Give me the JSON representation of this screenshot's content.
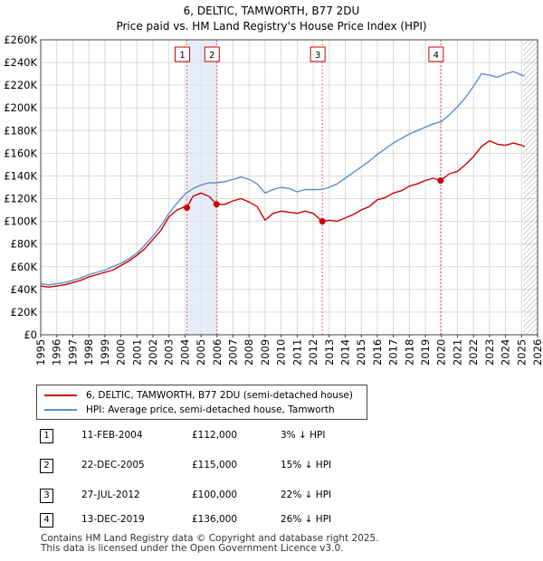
{
  "title_line1": "6, DELTIC, TAMWORTH, B77 2DU",
  "title_line2": "Price paid vs. HM Land Registry's House Price Index (HPI)",
  "colors": {
    "property": "#cc0000",
    "hpi": "#5b8fc9",
    "marker_line": "#e06666",
    "hatch": "#999999"
  },
  "chart_data": {
    "type": "line",
    "title": "Price paid vs. HM Land Registry's House Price Index (HPI)",
    "xlabel": "",
    "ylabel": "",
    "xlim": [
      1995,
      2026
    ],
    "ylim": [
      0,
      260000
    ],
    "y_ticks": [
      0,
      20000,
      40000,
      60000,
      80000,
      100000,
      120000,
      140000,
      160000,
      180000,
      200000,
      220000,
      240000,
      260000
    ],
    "y_tick_labels": [
      "£0",
      "£20K",
      "£40K",
      "£60K",
      "£80K",
      "£100K",
      "£120K",
      "£140K",
      "£160K",
      "£180K",
      "£200K",
      "£220K",
      "£240K",
      "£260K"
    ],
    "x_ticks": [
      1995,
      1996,
      1997,
      1998,
      1999,
      2000,
      2001,
      2002,
      2003,
      2004,
      2005,
      2006,
      2007,
      2008,
      2009,
      2010,
      2011,
      2012,
      2013,
      2014,
      2015,
      2016,
      2017,
      2018,
      2019,
      2020,
      2021,
      2022,
      2023,
      2024,
      2025,
      2026
    ],
    "x_tick_labels": [
      "1995",
      "1996",
      "1997",
      "1998",
      "1999",
      "2000",
      "2001",
      "2002",
      "2003",
      "2004",
      "2005",
      "2006",
      "2007",
      "2008",
      "2009",
      "2010",
      "2011",
      "2012",
      "2013",
      "2014",
      "2015",
      "2016",
      "2017",
      "2018",
      "2019",
      "2020",
      "2021",
      "2022",
      "2023",
      "2024",
      "2025",
      "2026"
    ],
    "grid": true,
    "forecast_start": 2025.1,
    "series": [
      {
        "name": "6, DELTIC, TAMWORTH, B77 2DU (semi-detached house)",
        "color": "#cc0000",
        "x": [
          1995.0,
          1995.5,
          1996.0,
          1996.5,
          1997.0,
          1997.5,
          1998.0,
          1998.5,
          1999.0,
          1999.5,
          2000.0,
          2000.5,
          2001.0,
          2001.5,
          2002.0,
          2002.5,
          2003.0,
          2003.5,
          2004.0,
          2004.12,
          2004.5,
          2005.0,
          2005.5,
          2005.97,
          2006.5,
          2007.0,
          2007.5,
          2008.0,
          2008.5,
          2009.0,
          2009.5,
          2010.0,
          2010.5,
          2011.0,
          2011.5,
          2012.0,
          2012.57,
          2013.0,
          2013.5,
          2014.0,
          2014.5,
          2015.0,
          2015.5,
          2016.0,
          2016.5,
          2017.0,
          2017.5,
          2018.0,
          2018.5,
          2019.0,
          2019.5,
          2019.95,
          2020.5,
          2021.0,
          2021.5,
          2022.0,
          2022.5,
          2023.0,
          2023.5,
          2024.0,
          2024.5,
          2025.0,
          2025.2
        ],
        "values": [
          43000,
          42000,
          43000,
          44000,
          46000,
          48000,
          51000,
          53000,
          55000,
          57000,
          61000,
          65000,
          70000,
          76000,
          84000,
          92000,
          104000,
          110000,
          113000,
          112000,
          122000,
          125000,
          122000,
          115000,
          115000,
          118000,
          120000,
          117000,
          113000,
          101000,
          107000,
          109000,
          108000,
          107000,
          109000,
          107000,
          100000,
          101000,
          100000,
          103000,
          106000,
          110000,
          113000,
          119000,
          121000,
          125000,
          127000,
          131000,
          133000,
          136000,
          138000,
          136000,
          142000,
          144000,
          150000,
          157000,
          166000,
          171000,
          168000,
          167000,
          169000,
          167000,
          166000
        ]
      },
      {
        "name": "HPI: Average price, semi-detached house, Tamworth",
        "color": "#5b8fc9",
        "x": [
          1995.0,
          1995.5,
          1996.0,
          1996.5,
          1997.0,
          1997.5,
          1998.0,
          1998.5,
          1999.0,
          1999.5,
          2000.0,
          2000.5,
          2001.0,
          2001.5,
          2002.0,
          2002.5,
          2003.0,
          2003.5,
          2004.0,
          2004.5,
          2005.0,
          2005.5,
          2006.0,
          2006.5,
          2007.0,
          2007.5,
          2008.0,
          2008.5,
          2009.0,
          2009.5,
          2010.0,
          2010.5,
          2011.0,
          2011.5,
          2012.0,
          2012.5,
          2013.0,
          2013.5,
          2014.0,
          2014.5,
          2015.0,
          2015.5,
          2016.0,
          2016.5,
          2017.0,
          2017.5,
          2018.0,
          2018.5,
          2019.0,
          2019.5,
          2020.0,
          2020.5,
          2021.0,
          2021.5,
          2022.0,
          2022.5,
          2023.0,
          2023.5,
          2024.0,
          2024.5,
          2025.0,
          2025.2
        ],
        "values": [
          45000,
          44000,
          45000,
          46000,
          48000,
          50000,
          53000,
          55000,
          57000,
          60000,
          63000,
          67000,
          72000,
          79000,
          87000,
          96000,
          107000,
          116000,
          124000,
          129000,
          132000,
          134000,
          134000,
          135000,
          137000,
          139000,
          137000,
          133000,
          125000,
          128000,
          130000,
          129000,
          126000,
          128000,
          128000,
          128000,
          130000,
          133000,
          138000,
          143000,
          148000,
          153000,
          159000,
          164000,
          169000,
          173000,
          177000,
          180000,
          183000,
          186000,
          188000,
          194000,
          201000,
          209000,
          219000,
          230000,
          229000,
          227000,
          230000,
          232000,
          229000,
          228000
        ]
      }
    ],
    "sales": [
      {
        "label": "1",
        "date": "11-FEB-2004",
        "x": 2004.12,
        "price": 112000
      },
      {
        "label": "2",
        "date": "22-DEC-2005",
        "x": 2005.97,
        "price": 115000
      },
      {
        "label": "3",
        "date": "27-JUL-2012",
        "x": 2012.57,
        "price": 100000
      },
      {
        "label": "4",
        "date": "13-DEC-2019",
        "x": 2019.95,
        "price": 136000
      }
    ]
  },
  "legend": {
    "property_label": "6, DELTIC, TAMWORTH, B77 2DU (semi-detached house)",
    "hpi_label": "HPI: Average price, semi-detached house, Tamworth"
  },
  "sales_table": [
    {
      "num": "1",
      "date": "11-FEB-2004",
      "price": "£112,000",
      "hpi": "3% ↓ HPI"
    },
    {
      "num": "2",
      "date": "22-DEC-2005",
      "price": "£115,000",
      "hpi": "15% ↓ HPI"
    },
    {
      "num": "3",
      "date": "27-JUL-2012",
      "price": "£100,000",
      "hpi": "22% ↓ HPI"
    },
    {
      "num": "4",
      "date": "13-DEC-2019",
      "price": "£136,000",
      "hpi": "26% ↓ HPI"
    }
  ],
  "footer": {
    "line1": "Contains HM Land Registry data © Copyright and database right 2025.",
    "line2": "This data is licensed under the Open Government Licence v3.0."
  }
}
